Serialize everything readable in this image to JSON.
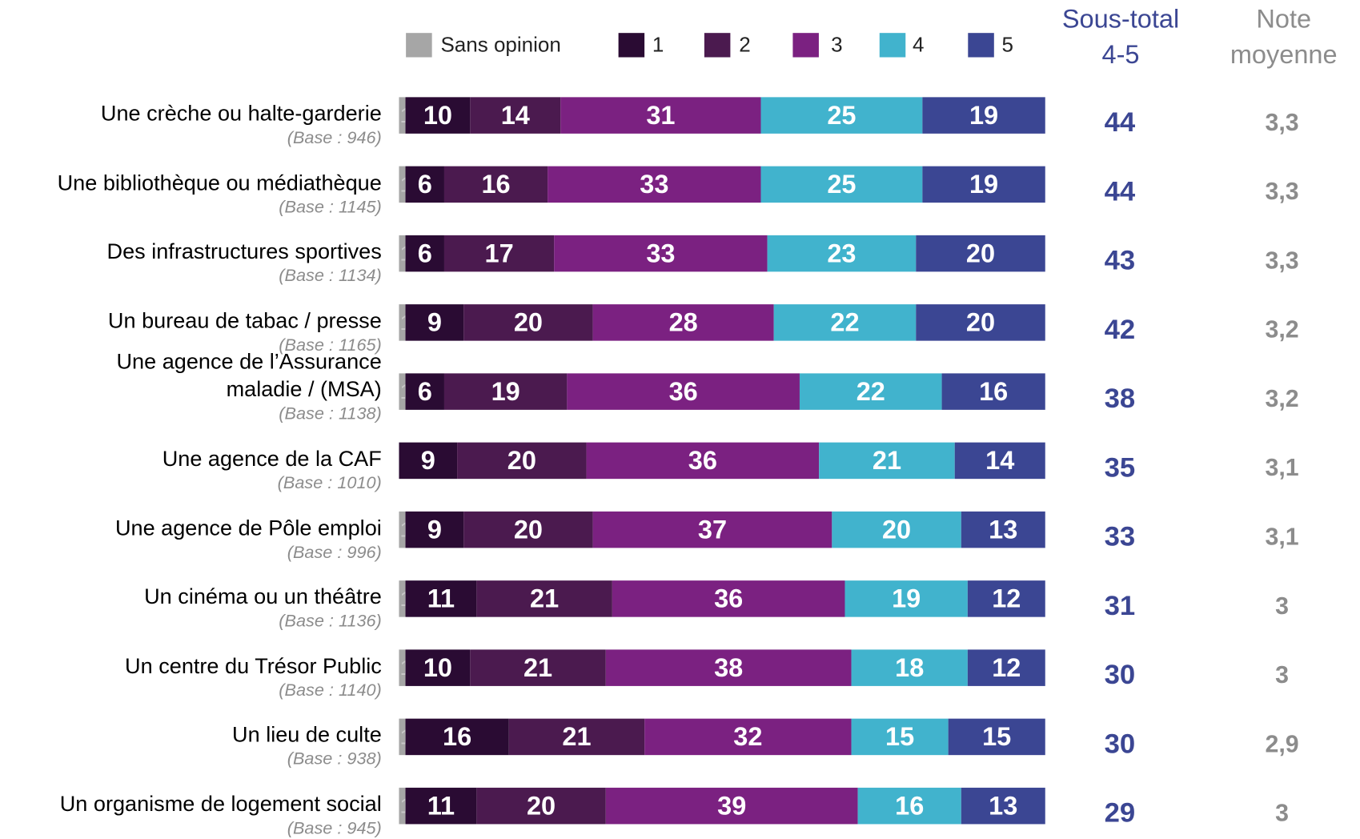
{
  "chart_data": {
    "type": "bar",
    "orientation": "horizontal",
    "stacked": true,
    "categories": [
      "Une crèche ou halte-garderie",
      "Une bibliothèque ou médiathèque",
      "Des infrastructures sportives",
      "Un bureau de tabac / presse",
      "Une agence de l’Assurance\nmaladie / (MSA)",
      "Une agence de la CAF",
      "Une agence de Pôle emploi",
      "Un cinéma ou un théâtre",
      "Un centre du Trésor Public",
      "Un lieu de culte",
      "Un organisme de logement social"
    ],
    "bases": [
      "(Base : 946)",
      "(Base : 1145)",
      "(Base : 1134)",
      "(Base : 1165)",
      "(Base : 1138)",
      "(Base : 1010)",
      "(Base : 996)",
      "(Base : 1136)",
      "(Base : 1140)",
      "(Base : 938)",
      "(Base : 945)"
    ],
    "xlim": [
      0,
      100
    ],
    "series": [
      {
        "name": "Sans opinion",
        "color": "#a6a6a6",
        "values": [
          1,
          1,
          1,
          1,
          1,
          null,
          1,
          1,
          1,
          1,
          1
        ]
      },
      {
        "name": "1",
        "color": "#2a0b33",
        "values": [
          10,
          6,
          6,
          9,
          6,
          9,
          9,
          11,
          10,
          16,
          11
        ]
      },
      {
        "name": "2",
        "color": "#4b1a4f",
        "values": [
          14,
          16,
          17,
          20,
          19,
          20,
          20,
          21,
          21,
          21,
          20
        ]
      },
      {
        "name": "3",
        "color": "#7b2181",
        "values": [
          31,
          33,
          33,
          28,
          36,
          36,
          37,
          36,
          38,
          32,
          39
        ]
      },
      {
        "name": "4",
        "color": "#41b3cd",
        "values": [
          25,
          25,
          23,
          22,
          22,
          21,
          20,
          19,
          18,
          15,
          16
        ]
      },
      {
        "name": "5",
        "color": "#3b4693",
        "values": [
          19,
          19,
          20,
          20,
          16,
          14,
          13,
          12,
          12,
          15,
          13
        ]
      }
    ],
    "subtotal": {
      "name": "Sous-total\n4-5",
      "color": "#3b4693",
      "values": [
        44,
        44,
        43,
        42,
        38,
        35,
        33,
        31,
        30,
        30,
        29
      ]
    },
    "note": {
      "name": "Note\nmoyenne",
      "color": "#8c8c8c",
      "values": [
        3.3,
        3.3,
        3.3,
        3.2,
        3.2,
        3.1,
        3.1,
        3,
        3,
        2.9,
        3
      ],
      "value_labels": [
        "3,3",
        "3,3",
        "3,3",
        "3,2",
        "3,2",
        "3,1",
        "3,1",
        "3",
        "3",
        "2,9",
        "3"
      ]
    }
  }
}
